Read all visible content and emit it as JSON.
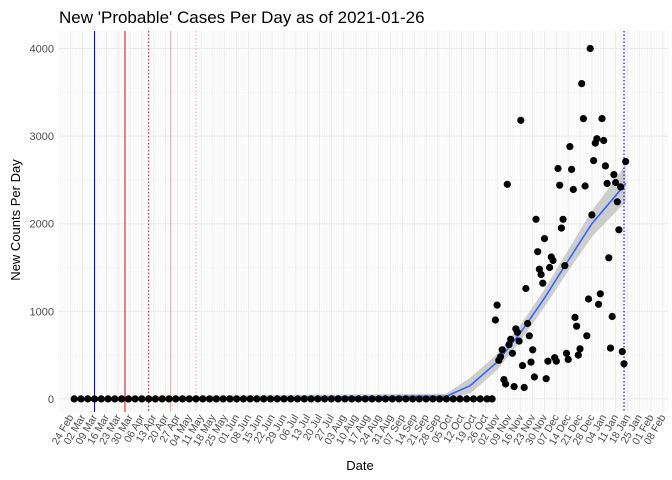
{
  "chart_data": {
    "type": "scatter",
    "title": "New 'Probable' Cases Per Day as of 2021-01-26",
    "xlabel": "Date",
    "ylabel": "New Counts Per Day",
    "xlim": [
      "2020-02-17",
      "2021-02-11"
    ],
    "ylim": [
      -150,
      4200
    ],
    "y_ticks": [
      0,
      1000,
      2000,
      3000,
      4000
    ],
    "x_ticks": [
      {
        "date": "2020-02-24",
        "label": "24 Feb"
      },
      {
        "date": "2020-03-02",
        "label": "02 Mar"
      },
      {
        "date": "2020-03-09",
        "label": "09 Mar"
      },
      {
        "date": "2020-03-16",
        "label": "16 Mar"
      },
      {
        "date": "2020-03-23",
        "label": "23 Mar"
      },
      {
        "date": "2020-03-30",
        "label": "30 Mar"
      },
      {
        "date": "2020-04-06",
        "label": "06 Apr"
      },
      {
        "date": "2020-04-13",
        "label": "13 Apr"
      },
      {
        "date": "2020-04-20",
        "label": "20 Apr"
      },
      {
        "date": "2020-04-27",
        "label": "27 Apr"
      },
      {
        "date": "2020-05-04",
        "label": "04 May"
      },
      {
        "date": "2020-05-11",
        "label": "11 May"
      },
      {
        "date": "2020-05-18",
        "label": "18 May"
      },
      {
        "date": "2020-05-25",
        "label": "25 May"
      },
      {
        "date": "2020-06-01",
        "label": "01 Jun"
      },
      {
        "date": "2020-06-08",
        "label": "08 Jun"
      },
      {
        "date": "2020-06-15",
        "label": "15 Jun"
      },
      {
        "date": "2020-06-22",
        "label": "22 Jun"
      },
      {
        "date": "2020-06-29",
        "label": "29 Jun"
      },
      {
        "date": "2020-07-06",
        "label": "06 Jul"
      },
      {
        "date": "2020-07-13",
        "label": "13 Jul"
      },
      {
        "date": "2020-07-20",
        "label": "20 Jul"
      },
      {
        "date": "2020-07-27",
        "label": "27 Jul"
      },
      {
        "date": "2020-08-03",
        "label": "03 Aug"
      },
      {
        "date": "2020-08-10",
        "label": "10 Aug"
      },
      {
        "date": "2020-08-17",
        "label": "17 Aug"
      },
      {
        "date": "2020-08-24",
        "label": "24 Aug"
      },
      {
        "date": "2020-08-31",
        "label": "31 Aug"
      },
      {
        "date": "2020-09-07",
        "label": "07 Sep"
      },
      {
        "date": "2020-09-14",
        "label": "14 Sep"
      },
      {
        "date": "2020-09-21",
        "label": "21 Sep"
      },
      {
        "date": "2020-09-28",
        "label": "28 Sep"
      },
      {
        "date": "2020-10-05",
        "label": "05 Oct"
      },
      {
        "date": "2020-10-12",
        "label": "12 Oct"
      },
      {
        "date": "2020-10-19",
        "label": "19 Oct"
      },
      {
        "date": "2020-10-26",
        "label": "26 Oct"
      },
      {
        "date": "2020-11-02",
        "label": "02 Nov"
      },
      {
        "date": "2020-11-09",
        "label": "09 Nov"
      },
      {
        "date": "2020-11-16",
        "label": "16 Nov"
      },
      {
        "date": "2020-11-23",
        "label": "23 Nov"
      },
      {
        "date": "2020-11-30",
        "label": "30 Nov"
      },
      {
        "date": "2020-12-07",
        "label": "07 Dec"
      },
      {
        "date": "2020-12-14",
        "label": "14 Dec"
      },
      {
        "date": "2020-12-21",
        "label": "21 Dec"
      },
      {
        "date": "2020-12-28",
        "label": "28 Dec"
      },
      {
        "date": "2021-01-04",
        "label": "04 Jan"
      },
      {
        "date": "2021-01-11",
        "label": "11 Jan"
      },
      {
        "date": "2021-01-18",
        "label": "18 Jan"
      },
      {
        "date": "2021-01-25",
        "label": "25 Jan"
      },
      {
        "date": "2021-02-01",
        "label": "01 Feb"
      },
      {
        "date": "2021-02-08",
        "label": "08 Feb"
      }
    ],
    "x_minor_grid": "daily",
    "grid": true,
    "legend": "none",
    "points": [
      {
        "date": "2020-02-26",
        "y": 0
      },
      {
        "date": "2020-03-01",
        "y": 0
      },
      {
        "date": "2020-03-05",
        "y": 0
      },
      {
        "date": "2020-03-09",
        "y": 0
      },
      {
        "date": "2020-03-13",
        "y": 0
      },
      {
        "date": "2020-03-17",
        "y": 0
      },
      {
        "date": "2020-03-21",
        "y": 0
      },
      {
        "date": "2020-03-25",
        "y": 0
      },
      {
        "date": "2020-03-29",
        "y": 0
      },
      {
        "date": "2020-04-02",
        "y": 0
      },
      {
        "date": "2020-04-06",
        "y": 0
      },
      {
        "date": "2020-04-10",
        "y": 0
      },
      {
        "date": "2020-04-14",
        "y": 0
      },
      {
        "date": "2020-04-18",
        "y": 0
      },
      {
        "date": "2020-04-22",
        "y": 0
      },
      {
        "date": "2020-04-26",
        "y": 0
      },
      {
        "date": "2020-04-30",
        "y": 0
      },
      {
        "date": "2020-05-04",
        "y": 0
      },
      {
        "date": "2020-05-08",
        "y": 0
      },
      {
        "date": "2020-05-12",
        "y": 0
      },
      {
        "date": "2020-05-16",
        "y": 0
      },
      {
        "date": "2020-05-20",
        "y": 0
      },
      {
        "date": "2020-05-24",
        "y": 0
      },
      {
        "date": "2020-05-28",
        "y": 0
      },
      {
        "date": "2020-06-01",
        "y": 0
      },
      {
        "date": "2020-06-05",
        "y": 0
      },
      {
        "date": "2020-06-09",
        "y": 0
      },
      {
        "date": "2020-06-13",
        "y": 0
      },
      {
        "date": "2020-06-17",
        "y": 0
      },
      {
        "date": "2020-06-21",
        "y": 0
      },
      {
        "date": "2020-06-25",
        "y": 0
      },
      {
        "date": "2020-06-29",
        "y": 0
      },
      {
        "date": "2020-07-03",
        "y": 0
      },
      {
        "date": "2020-07-07",
        "y": 0
      },
      {
        "date": "2020-07-11",
        "y": 0
      },
      {
        "date": "2020-07-15",
        "y": 0
      },
      {
        "date": "2020-07-19",
        "y": 0
      },
      {
        "date": "2020-07-23",
        "y": 0
      },
      {
        "date": "2020-07-27",
        "y": 0
      },
      {
        "date": "2020-07-31",
        "y": 0
      },
      {
        "date": "2020-08-04",
        "y": 0
      },
      {
        "date": "2020-08-08",
        "y": 0
      },
      {
        "date": "2020-08-12",
        "y": 0
      },
      {
        "date": "2020-08-16",
        "y": 0
      },
      {
        "date": "2020-08-20",
        "y": 0
      },
      {
        "date": "2020-08-24",
        "y": 0
      },
      {
        "date": "2020-08-28",
        "y": 0
      },
      {
        "date": "2020-09-01",
        "y": 0
      },
      {
        "date": "2020-09-05",
        "y": 0
      },
      {
        "date": "2020-09-09",
        "y": 0
      },
      {
        "date": "2020-09-13",
        "y": 0
      },
      {
        "date": "2020-09-17",
        "y": 0
      },
      {
        "date": "2020-09-21",
        "y": 0
      },
      {
        "date": "2020-09-25",
        "y": 0
      },
      {
        "date": "2020-09-29",
        "y": 0
      },
      {
        "date": "2020-10-03",
        "y": 0
      },
      {
        "date": "2020-10-07",
        "y": 0
      },
      {
        "date": "2020-10-11",
        "y": 0
      },
      {
        "date": "2020-10-15",
        "y": 0
      },
      {
        "date": "2020-10-19",
        "y": 0
      },
      {
        "date": "2020-10-23",
        "y": 0
      },
      {
        "date": "2020-10-27",
        "y": 0
      },
      {
        "date": "2020-10-30",
        "y": 0
      },
      {
        "date": "2020-11-01",
        "y": 900
      },
      {
        "date": "2020-11-02",
        "y": 1070
      },
      {
        "date": "2020-11-03",
        "y": 440
      },
      {
        "date": "2020-11-04",
        "y": 480
      },
      {
        "date": "2020-11-05",
        "y": 560
      },
      {
        "date": "2020-11-06",
        "y": 220
      },
      {
        "date": "2020-11-07",
        "y": 170
      },
      {
        "date": "2020-11-08",
        "y": 2450
      },
      {
        "date": "2020-11-09",
        "y": 620
      },
      {
        "date": "2020-11-10",
        "y": 680
      },
      {
        "date": "2020-11-11",
        "y": 520
      },
      {
        "date": "2020-11-12",
        "y": 140
      },
      {
        "date": "2020-11-13",
        "y": 800
      },
      {
        "date": "2020-11-14",
        "y": 760
      },
      {
        "date": "2020-11-15",
        "y": 660
      },
      {
        "date": "2020-11-16",
        "y": 3180
      },
      {
        "date": "2020-11-17",
        "y": 380
      },
      {
        "date": "2020-11-18",
        "y": 130
      },
      {
        "date": "2020-11-19",
        "y": 1260
      },
      {
        "date": "2020-11-20",
        "y": 860
      },
      {
        "date": "2020-11-21",
        "y": 720
      },
      {
        "date": "2020-11-22",
        "y": 420
      },
      {
        "date": "2020-11-23",
        "y": 560
      },
      {
        "date": "2020-11-24",
        "y": 250
      },
      {
        "date": "2020-11-25",
        "y": 2050
      },
      {
        "date": "2020-11-26",
        "y": 1680
      },
      {
        "date": "2020-11-27",
        "y": 1480
      },
      {
        "date": "2020-11-28",
        "y": 1420
      },
      {
        "date": "2020-11-29",
        "y": 1320
      },
      {
        "date": "2020-11-30",
        "y": 1830
      },
      {
        "date": "2020-12-01",
        "y": 230
      },
      {
        "date": "2020-12-02",
        "y": 430
      },
      {
        "date": "2020-12-03",
        "y": 1500
      },
      {
        "date": "2020-12-04",
        "y": 1620
      },
      {
        "date": "2020-12-05",
        "y": 1580
      },
      {
        "date": "2020-12-06",
        "y": 470
      },
      {
        "date": "2020-12-07",
        "y": 430
      },
      {
        "date": "2020-12-08",
        "y": 2630
      },
      {
        "date": "2020-12-09",
        "y": 2440
      },
      {
        "date": "2020-12-10",
        "y": 1950
      },
      {
        "date": "2020-12-11",
        "y": 2050
      },
      {
        "date": "2020-12-12",
        "y": 1520
      },
      {
        "date": "2020-12-13",
        "y": 520
      },
      {
        "date": "2020-12-14",
        "y": 450
      },
      {
        "date": "2020-12-15",
        "y": 2880
      },
      {
        "date": "2020-12-16",
        "y": 2620
      },
      {
        "date": "2020-12-17",
        "y": 2390
      },
      {
        "date": "2020-12-18",
        "y": 930
      },
      {
        "date": "2020-12-19",
        "y": 830
      },
      {
        "date": "2020-12-20",
        "y": 500
      },
      {
        "date": "2020-12-21",
        "y": 570
      },
      {
        "date": "2020-12-22",
        "y": 3600
      },
      {
        "date": "2020-12-23",
        "y": 3200
      },
      {
        "date": "2020-12-24",
        "y": 2430
      },
      {
        "date": "2020-12-25",
        "y": 720
      },
      {
        "date": "2020-12-26",
        "y": 1140
      },
      {
        "date": "2020-12-27",
        "y": 4000
      },
      {
        "date": "2020-12-28",
        "y": 2100
      },
      {
        "date": "2020-12-29",
        "y": 2720
      },
      {
        "date": "2020-12-30",
        "y": 2920
      },
      {
        "date": "2020-12-31",
        "y": 2970
      },
      {
        "date": "2021-01-01",
        "y": 1080
      },
      {
        "date": "2021-01-02",
        "y": 1200
      },
      {
        "date": "2021-01-03",
        "y": 3200
      },
      {
        "date": "2021-01-04",
        "y": 2950
      },
      {
        "date": "2021-01-05",
        "y": 2660
      },
      {
        "date": "2021-01-06",
        "y": 2460
      },
      {
        "date": "2021-01-07",
        "y": 1610
      },
      {
        "date": "2021-01-08",
        "y": 580
      },
      {
        "date": "2021-01-09",
        "y": 940
      },
      {
        "date": "2021-01-10",
        "y": 2560
      },
      {
        "date": "2021-01-11",
        "y": 2470
      },
      {
        "date": "2021-01-12",
        "y": 2250
      },
      {
        "date": "2021-01-13",
        "y": 1930
      },
      {
        "date": "2021-01-14",
        "y": 2420
      },
      {
        "date": "2021-01-15",
        "y": 540
      },
      {
        "date": "2021-01-16",
        "y": 400
      },
      {
        "date": "2021-01-17",
        "y": 2710
      }
    ],
    "trend_line": [
      {
        "date": "2020-02-26",
        "y": 0
      },
      {
        "date": "2020-10-03",
        "y": 30
      },
      {
        "date": "2020-10-17",
        "y": 150
      },
      {
        "date": "2020-11-02",
        "y": 420
      },
      {
        "date": "2020-11-16",
        "y": 760
      },
      {
        "date": "2020-11-30",
        "y": 1150
      },
      {
        "date": "2020-12-14",
        "y": 1580
      },
      {
        "date": "2020-12-28",
        "y": 2000
      },
      {
        "date": "2021-01-11",
        "y": 2320
      },
      {
        "date": "2021-01-17",
        "y": 2460
      }
    ],
    "confidence_band": [
      {
        "date": "2020-02-26",
        "lo": -25,
        "hi": 25
      },
      {
        "date": "2020-10-03",
        "lo": 0,
        "hi": 60
      },
      {
        "date": "2020-10-17",
        "lo": 60,
        "hi": 240
      },
      {
        "date": "2020-11-02",
        "lo": 330,
        "hi": 510
      },
      {
        "date": "2020-11-16",
        "lo": 670,
        "hi": 850
      },
      {
        "date": "2020-11-30",
        "lo": 1050,
        "hi": 1250
      },
      {
        "date": "2020-12-14",
        "lo": 1460,
        "hi": 1700
      },
      {
        "date": "2020-12-28",
        "lo": 1850,
        "hi": 2150
      },
      {
        "date": "2021-01-11",
        "lo": 2130,
        "hi": 2510
      },
      {
        "date": "2021-01-17",
        "lo": 2250,
        "hi": 2680
      }
    ],
    "reference_lines": [
      {
        "date": "2020-03-09",
        "color": "#0000ff",
        "style": "solid"
      },
      {
        "date": "2020-03-27",
        "color": "#e41a1c",
        "style": "solid"
      },
      {
        "date": "2020-04-10",
        "color": "#e41a1c",
        "style": "dotted"
      },
      {
        "date": "2020-04-23",
        "color": "#f4a6a6",
        "style": "solid"
      },
      {
        "date": "2020-05-08",
        "color": "#f4a6a6",
        "style": "dotted"
      },
      {
        "date": "2021-01-16",
        "color": "#0000ff",
        "style": "dotted"
      }
    ],
    "colors": {
      "points": "#000000",
      "trend": "#3366ff",
      "band": "#bdbdbd"
    }
  }
}
